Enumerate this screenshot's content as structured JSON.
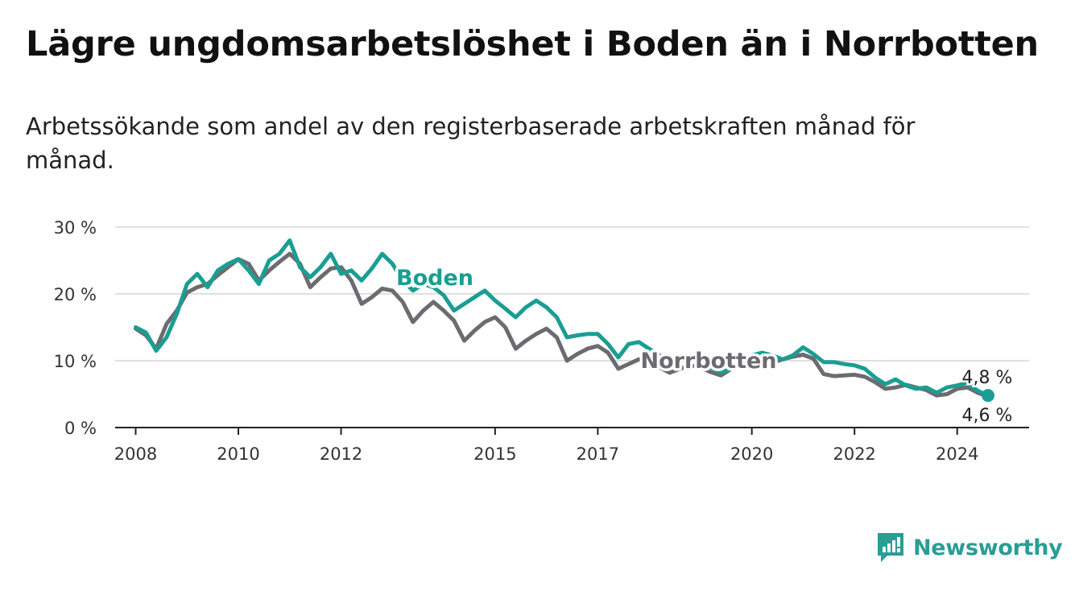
{
  "title": "Lägre ungdomsarbetslöshet i Boden än i Norrbotten",
  "subtitle": "Arbetssökande som andel av den registerbaserade arbetskraften månad för månad.",
  "brand": {
    "name": "Newsworthy",
    "icon": "newsworthy-logo-icon",
    "color": "#2a9d95"
  },
  "colors": {
    "boden": "#1a9e93",
    "norrbotten": "#6b6b70",
    "grid": "#d6d6d6",
    "axis": "#222222"
  },
  "chart_data": {
    "type": "line",
    "ylim": [
      0,
      30
    ],
    "xlim": [
      2007.6,
      2025.4
    ],
    "y_ticks": [
      {
        "value": 0,
        "label": "0 %"
      },
      {
        "value": 10,
        "label": "10 %"
      },
      {
        "value": 20,
        "label": "20 %"
      },
      {
        "value": 30,
        "label": "30 %"
      }
    ],
    "x_ticks": [
      {
        "value": 2008,
        "label": "2008"
      },
      {
        "value": 2010,
        "label": "2010"
      },
      {
        "value": 2012,
        "label": "2012"
      },
      {
        "value": 2015,
        "label": "2015"
      },
      {
        "value": 2017,
        "label": "2017"
      },
      {
        "value": 2020,
        "label": "2020"
      },
      {
        "value": 2022,
        "label": "2022"
      },
      {
        "value": 2024,
        "label": "2024"
      }
    ],
    "grid": true,
    "series": [
      {
        "name": "Norrbotten",
        "label": "Norrbotten",
        "end_label": "4,6 %",
        "x": [
          2008.0,
          2008.2,
          2008.4,
          2008.6,
          2008.8,
          2009.0,
          2009.2,
          2009.4,
          2009.6,
          2009.8,
          2010.0,
          2010.2,
          2010.4,
          2010.6,
          2010.8,
          2011.0,
          2011.2,
          2011.4,
          2011.6,
          2011.8,
          2012.0,
          2012.2,
          2012.4,
          2012.6,
          2012.8,
          2013.0,
          2013.2,
          2013.4,
          2013.6,
          2013.8,
          2014.0,
          2014.2,
          2014.4,
          2014.6,
          2014.8,
          2015.0,
          2015.2,
          2015.4,
          2015.6,
          2015.8,
          2016.0,
          2016.2,
          2016.4,
          2016.6,
          2016.8,
          2017.0,
          2017.2,
          2017.4,
          2017.6,
          2017.8,
          2018.0,
          2018.2,
          2018.4,
          2018.6,
          2018.8,
          2019.0,
          2019.2,
          2019.4,
          2019.6,
          2019.8,
          2020.0,
          2020.2,
          2020.4,
          2020.6,
          2020.8,
          2021.0,
          2021.2,
          2021.4,
          2021.6,
          2021.8,
          2022.0,
          2022.2,
          2022.4,
          2022.6,
          2022.8,
          2023.0,
          2023.2,
          2023.4,
          2023.6,
          2023.8,
          2024.0,
          2024.2,
          2024.4,
          2024.6
        ],
        "y": [
          14.8,
          13.8,
          11.8,
          15.5,
          17.5,
          20.2,
          21.0,
          21.5,
          22.8,
          24.0,
          25.2,
          24.5,
          22.0,
          23.5,
          24.8,
          26.0,
          24.5,
          21.0,
          22.5,
          23.8,
          24.0,
          22.0,
          18.5,
          19.5,
          20.8,
          20.5,
          18.8,
          15.8,
          17.5,
          18.8,
          17.5,
          16.0,
          13.0,
          14.5,
          15.8,
          16.5,
          15.0,
          11.8,
          13.0,
          14.0,
          14.8,
          13.5,
          10.0,
          11.0,
          11.8,
          12.2,
          11.2,
          8.8,
          9.5,
          10.2,
          9.8,
          9.0,
          8.2,
          8.8,
          9.3,
          9.0,
          8.3,
          7.8,
          8.8,
          9.6,
          10.3,
          10.3,
          9.7,
          10.2,
          10.6,
          10.9,
          10.3,
          8.0,
          7.7,
          7.8,
          7.9,
          7.6,
          6.8,
          5.8,
          6.0,
          6.4,
          6.0,
          5.6,
          4.8,
          5.0,
          5.8,
          6.0,
          5.2,
          4.6
        ]
      },
      {
        "name": "Boden",
        "label": "Boden",
        "end_label": "4,8 %",
        "x": [
          2008.0,
          2008.2,
          2008.4,
          2008.6,
          2008.8,
          2009.0,
          2009.2,
          2009.4,
          2009.6,
          2009.8,
          2010.0,
          2010.2,
          2010.4,
          2010.6,
          2010.8,
          2011.0,
          2011.2,
          2011.4,
          2011.6,
          2011.8,
          2012.0,
          2012.2,
          2012.4,
          2012.6,
          2012.8,
          2013.0,
          2013.2,
          2013.4,
          2013.6,
          2013.8,
          2014.0,
          2014.2,
          2014.4,
          2014.6,
          2014.8,
          2015.0,
          2015.2,
          2015.4,
          2015.6,
          2015.8,
          2016.0,
          2016.2,
          2016.4,
          2016.6,
          2016.8,
          2017.0,
          2017.2,
          2017.4,
          2017.6,
          2017.8,
          2018.0,
          2018.2,
          2018.4,
          2018.6,
          2018.8,
          2019.0,
          2019.2,
          2019.4,
          2019.6,
          2019.8,
          2020.0,
          2020.2,
          2020.4,
          2020.6,
          2020.8,
          2021.0,
          2021.2,
          2021.4,
          2021.6,
          2021.8,
          2022.0,
          2022.2,
          2022.4,
          2022.6,
          2022.8,
          2023.0,
          2023.2,
          2023.4,
          2023.6,
          2023.8,
          2024.0,
          2024.2,
          2024.4,
          2024.6
        ],
        "y": [
          15.0,
          14.2,
          11.5,
          13.5,
          17.0,
          21.5,
          23.0,
          21.0,
          23.5,
          24.5,
          25.2,
          23.5,
          21.5,
          25.0,
          26.0,
          28.0,
          24.0,
          22.5,
          24.0,
          26.0,
          23.0,
          23.5,
          22.0,
          23.8,
          26.0,
          24.5,
          22.0,
          20.5,
          21.5,
          21.0,
          19.8,
          17.5,
          18.5,
          19.5,
          20.5,
          19.0,
          17.8,
          16.5,
          18.0,
          19.0,
          18.0,
          16.5,
          13.5,
          13.8,
          14.0,
          14.0,
          12.5,
          10.5,
          12.5,
          12.8,
          11.8,
          10.8,
          9.5,
          10.0,
          10.3,
          10.0,
          9.0,
          8.3,
          8.8,
          9.5,
          10.8,
          11.2,
          10.8,
          10.2,
          10.8,
          12.0,
          11.0,
          9.8,
          9.8,
          9.5,
          9.3,
          8.8,
          7.5,
          6.5,
          7.2,
          6.3,
          5.8,
          6.0,
          5.2,
          6.0,
          6.3,
          6.7,
          5.5,
          4.8
        ]
      }
    ]
  }
}
